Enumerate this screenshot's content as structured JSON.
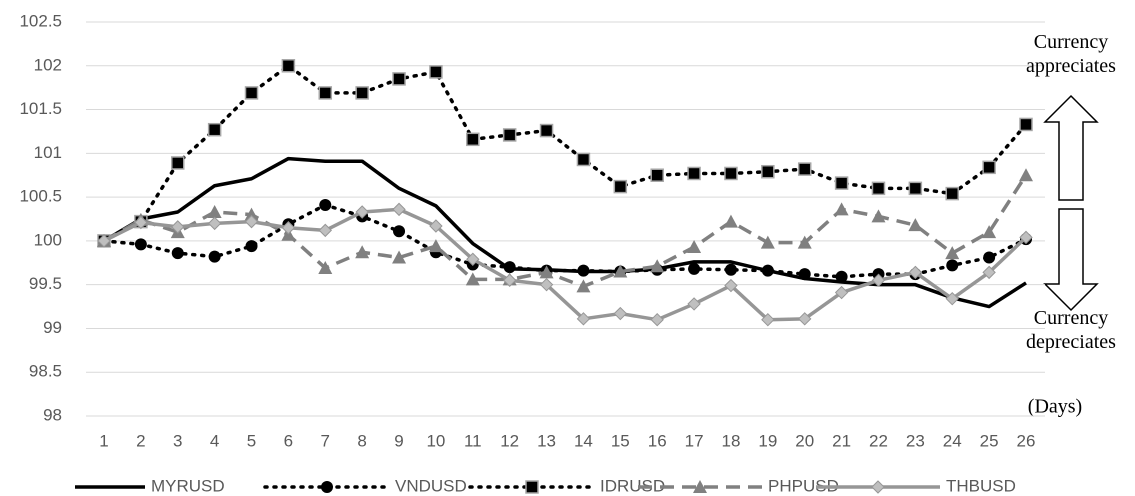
{
  "chart_data": {
    "type": "line",
    "categories": [
      "1",
      "2",
      "3",
      "4",
      "5",
      "6",
      "7",
      "8",
      "9",
      "10",
      "11",
      "12",
      "13",
      "14",
      "15",
      "16",
      "17",
      "18",
      "19",
      "20",
      "21",
      "22",
      "23",
      "24",
      "25",
      "26"
    ],
    "x_label": "(Days)",
    "annotations": [
      "Currency appreciates",
      "Currency depreciates"
    ],
    "ylim": [
      98,
      102.5
    ],
    "yticks": [
      98,
      98.5,
      99,
      99.5,
      100,
      100.5,
      101,
      101.5,
      102,
      102.5
    ],
    "grid": true,
    "legend": "bottom",
    "series": [
      {
        "name": "MYRUSD",
        "color": "#000000",
        "dash": "solid",
        "marker": "none",
        "values": [
          100,
          100.25,
          100.33,
          100.63,
          100.71,
          100.94,
          100.91,
          100.91,
          100.6,
          100.4,
          99.97,
          99.68,
          99.67,
          99.65,
          99.65,
          99.68,
          99.76,
          99.76,
          99.66,
          99.57,
          99.53,
          99.5,
          99.5,
          99.35,
          99.25,
          99.52
        ]
      },
      {
        "name": "VNDUSD",
        "color": "#000000",
        "dash": "dot",
        "marker": "circle",
        "values": [
          100,
          99.96,
          99.86,
          99.82,
          99.94,
          100.19,
          100.41,
          100.28,
          100.11,
          99.87,
          99.73,
          99.7,
          99.66,
          99.66,
          99.65,
          99.67,
          99.68,
          99.67,
          99.66,
          99.62,
          99.59,
          99.62,
          99.62,
          99.72,
          99.81,
          100.02
        ]
      },
      {
        "name": "IDRUSD",
        "color": "#000000",
        "dash": "dot",
        "marker": "square",
        "values": [
          100,
          100.22,
          100.89,
          101.27,
          101.69,
          102.0,
          101.69,
          101.69,
          101.85,
          101.93,
          101.16,
          101.21,
          101.26,
          100.93,
          100.62,
          100.75,
          100.77,
          100.77,
          100.79,
          100.82,
          100.66,
          100.6,
          100.6,
          100.54,
          100.84,
          101.33
        ]
      },
      {
        "name": "PHPUSD",
        "color": "#808080",
        "dash": "dash",
        "marker": "triangle",
        "values": [
          100,
          100.24,
          100.1,
          100.33,
          100.3,
          100.07,
          99.69,
          99.87,
          99.81,
          99.94,
          99.56,
          99.56,
          99.64,
          99.48,
          99.65,
          99.71,
          99.93,
          100.22,
          99.98,
          99.98,
          100.36,
          100.28,
          100.18,
          99.86,
          100.1,
          100.75
        ]
      },
      {
        "name": "THBUSD",
        "color": "#969696",
        "dash": "solid",
        "marker": "diamond",
        "values": [
          100,
          100.21,
          100.16,
          100.2,
          100.22,
          100.15,
          100.12,
          100.33,
          100.36,
          100.17,
          99.79,
          99.55,
          99.5,
          99.11,
          99.17,
          99.1,
          99.28,
          99.49,
          99.1,
          99.11,
          99.41,
          99.55,
          99.64,
          99.34,
          99.64,
          100.04
        ]
      }
    ]
  }
}
